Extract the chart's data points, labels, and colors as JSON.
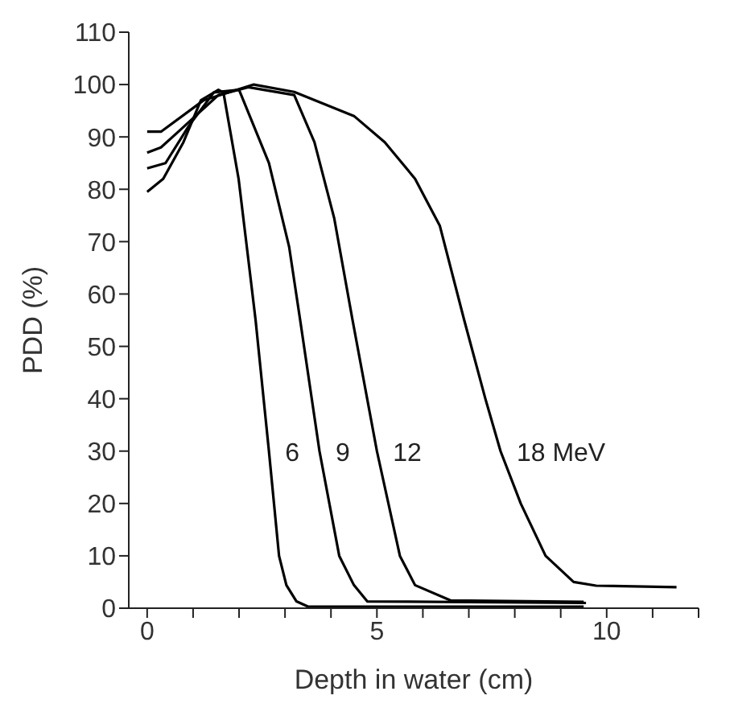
{
  "chart_data": {
    "type": "line",
    "xlabel": "Depth in water (cm)",
    "ylabel": "PDD (%)",
    "xlim": [
      -0.4,
      12
    ],
    "ylim": [
      0,
      110
    ],
    "xticks": [
      0,
      {
        "value": 1,
        "label": null
      },
      {
        "value": 2,
        "label": null
      },
      {
        "value": 3,
        "label": null
      },
      {
        "value": 4,
        "label": null
      },
      5,
      {
        "value": 6,
        "label": null
      },
      {
        "value": 7,
        "label": null
      },
      {
        "value": 8,
        "label": null
      },
      {
        "value": 9,
        "label": null
      },
      10,
      {
        "value": 11,
        "label": null
      },
      {
        "value": 12,
        "label": null
      }
    ],
    "yticks": [
      0,
      10,
      20,
      30,
      40,
      50,
      60,
      70,
      80,
      90,
      100,
      110
    ],
    "grid": false,
    "legend": false,
    "marker": "none",
    "line_style": "solid",
    "series": [
      {
        "name": "6",
        "color": "#000000",
        "x": [
          0,
          0.35,
          0.79,
          1.17,
          1.55,
          1.66,
          1.99,
          2.21,
          2.36,
          2.65,
          2.87,
          3.03,
          3.25,
          3.5,
          9.5
        ],
        "values": [
          79.5,
          82,
          89,
          97,
          99,
          98.5,
          82,
          66,
          55,
          30,
          10,
          4.4,
          1.3,
          0.3,
          0.3
        ]
      },
      {
        "name": "9",
        "color": "#000000",
        "x": [
          0,
          0.4,
          0.9,
          1.45,
          2.0,
          2.65,
          3.09,
          3.33,
          3.75,
          4.18,
          4.5,
          4.79,
          9.55
        ],
        "values": [
          84,
          85,
          92,
          98.5,
          99,
          85,
          69,
          55,
          30,
          10,
          4.4,
          1.3,
          1
        ]
      },
      {
        "name": "12",
        "color": "#000000",
        "x": [
          0,
          0.3,
          0.68,
          1.55,
          2.2,
          3.2,
          3.64,
          4.07,
          4.47,
          5.0,
          5.5,
          5.83,
          6.6,
          9.5
        ],
        "values": [
          87,
          88,
          91,
          98,
          99.5,
          98,
          89,
          74.5,
          55,
          30,
          10,
          4.4,
          1.5,
          1.2
        ]
      },
      {
        "name": "18 MeV",
        "color": "#000000",
        "x": [
          0,
          0.3,
          1.23,
          2.32,
          3.2,
          4.5,
          5.17,
          5.83,
          6.37,
          6.9,
          7.36,
          7.69,
          8.13,
          8.67,
          9.28,
          9.77,
          11.52
        ],
        "values": [
          91,
          91,
          97,
          100,
          98.6,
          94,
          89,
          82,
          73,
          55,
          40,
          30,
          20,
          10,
          5,
          4.3,
          4
        ]
      }
    ]
  }
}
